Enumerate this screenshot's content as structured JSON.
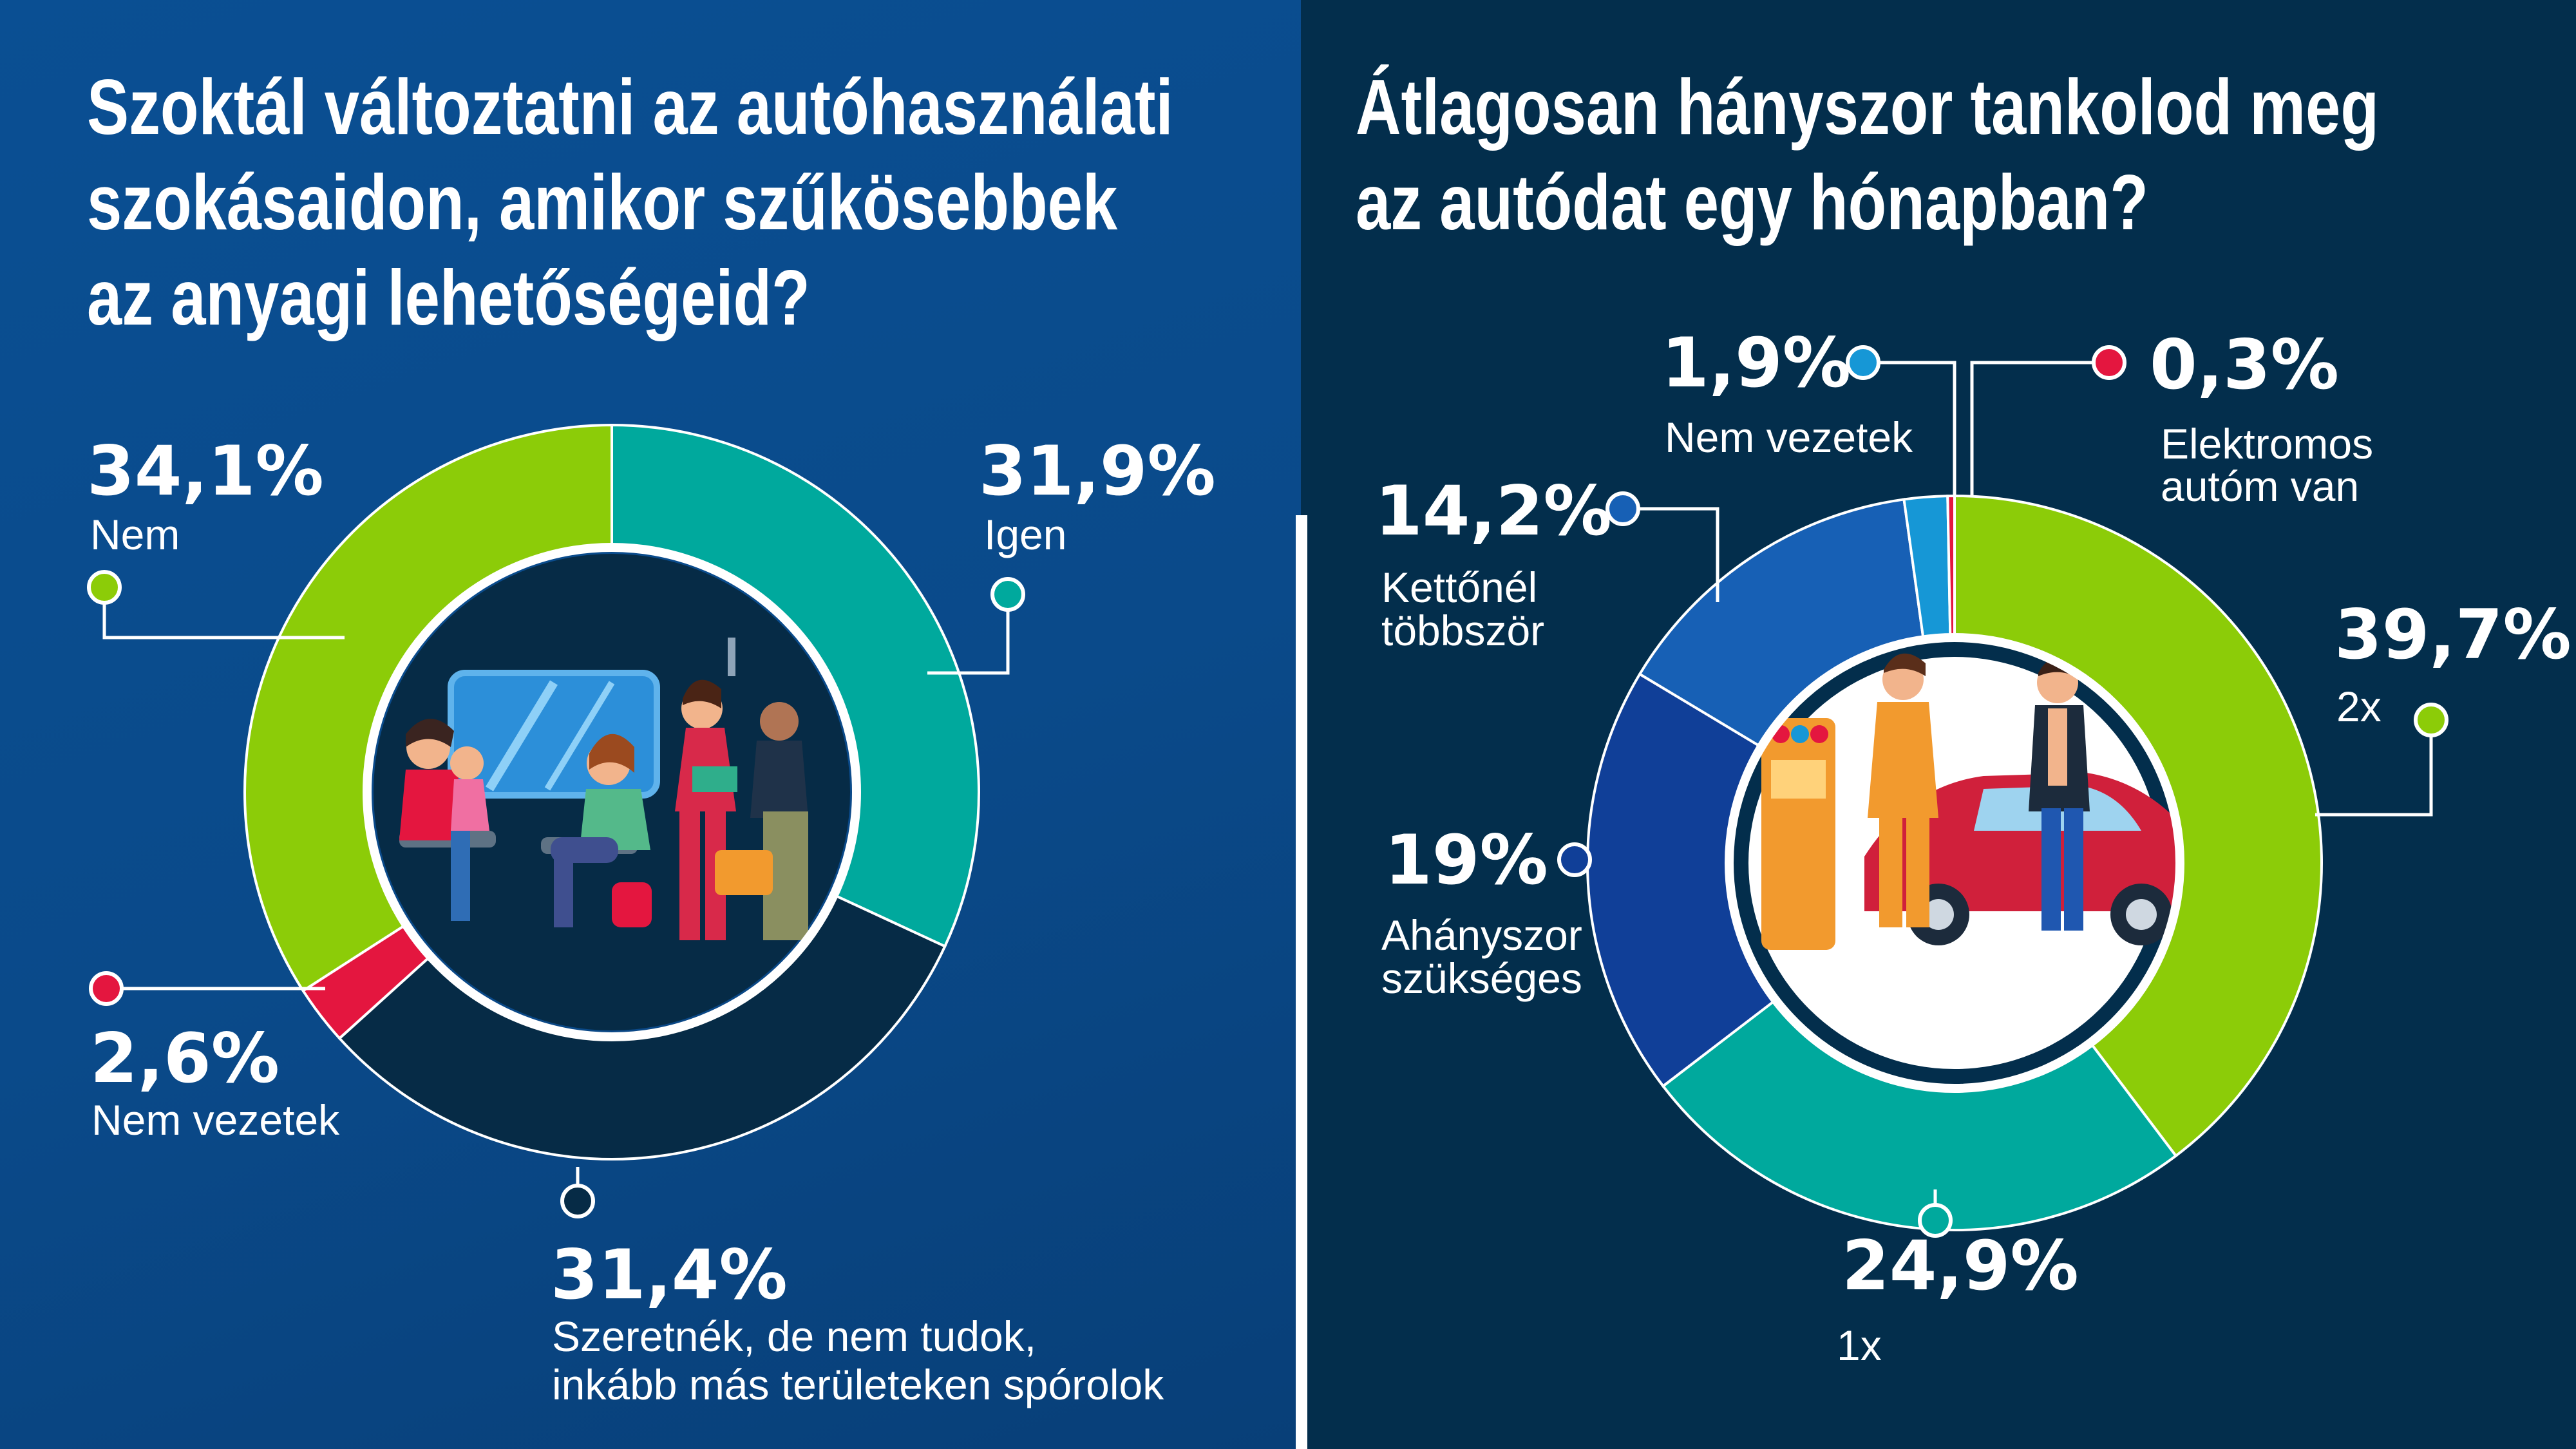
{
  "left_title": [
    "Szoktál változtatni az autóhasználati",
    "szokásaidon, amikor szűkösebbek",
    "az anyagi lehetőségeid?"
  ],
  "right_title": [
    "Átlagosan hányszor tankolod meg",
    "az autódat egy hónapban?"
  ],
  "chart_data": [
    {
      "type": "pie",
      "variant": "donut",
      "title": "Szoktál változtatni az autóhasználati szokásaidon, amikor szűkösebbek az anyagi lehetőségeid?",
      "unit": "%",
      "slices": [
        {
          "label_lines": [
            "Igen"
          ],
          "value": 31.9,
          "value_text": "31,9%",
          "color": "#00a99d"
        },
        {
          "label_lines": [
            "Szeretnék, de nem tudok,",
            "inkább más területeken spórolok"
          ],
          "value": 31.4,
          "value_text": "31,4%",
          "color": "#062b46"
        },
        {
          "label_lines": [
            "Nem vezetek"
          ],
          "value": 2.6,
          "value_text": "2,6%",
          "color": "#e4163f"
        },
        {
          "label_lines": [
            "Nem"
          ],
          "value": 34.1,
          "value_text": "34,1%",
          "color": "#8ccc08"
        }
      ]
    },
    {
      "type": "pie",
      "variant": "donut",
      "title": "Átlagosan hányszor tankolod meg az autódat egy hónapban?",
      "unit": "%",
      "slices": [
        {
          "label_lines": [
            "2x"
          ],
          "value": 39.7,
          "value_text": "39,7%",
          "color": "#8ccc08"
        },
        {
          "label_lines": [
            "1x"
          ],
          "value": 24.9,
          "value_text": "24,9%",
          "color": "#00a99d"
        },
        {
          "label_lines": [
            "Ahányszor",
            "szükséges"
          ],
          "value": 19,
          "value_text": "19%",
          "color": "#103f98"
        },
        {
          "label_lines": [
            "Kettőnél",
            "többször"
          ],
          "value": 14.2,
          "value_text": "14,2%",
          "color": "#1760b5"
        },
        {
          "label_lines": [
            "Nem vezetek"
          ],
          "value": 1.9,
          "value_text": "1,9%",
          "color": "#1697d6"
        },
        {
          "label_lines": [
            "Elektromos",
            "autóm van"
          ],
          "value": 0.3,
          "value_text": "0,3%",
          "color": "#e4163f"
        }
      ]
    }
  ]
}
